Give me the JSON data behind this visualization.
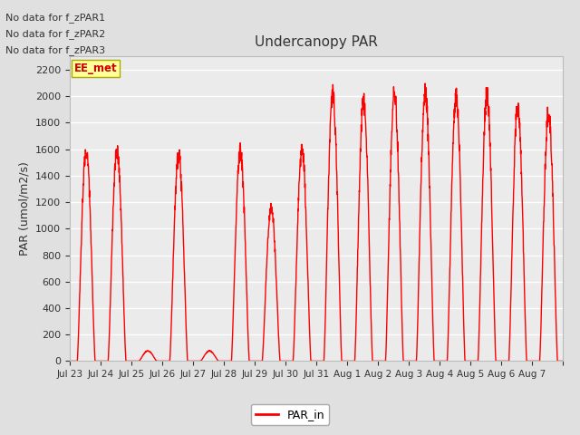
{
  "title": "Undercanopy PAR",
  "ylabel": "PAR (umol/m2/s)",
  "ylim": [
    0,
    2300
  ],
  "yticks": [
    0,
    200,
    400,
    600,
    800,
    1000,
    1200,
    1400,
    1600,
    1800,
    2000,
    2200
  ],
  "line_color": "#ff0000",
  "line_width": 1.0,
  "fig_bg_color": "#e0e0e0",
  "plot_bg_color": "#ebebeb",
  "no_data_texts": [
    "No data for f_zPAR1",
    "No data for f_zPAR2",
    "No data for f_zPAR3"
  ],
  "legend_label": "PAR_in",
  "legend_box_color": "#ffff99",
  "legend_box_text": "EE_met",
  "num_days": 16,
  "xlabels": [
    "Jul 23",
    "Jul 24",
    "Jul 25",
    "Jul 26",
    "Jul 27",
    "Jul 28",
    "Jul 29",
    "Jul 30",
    "Jul 31",
    "Aug 1",
    "Aug 2",
    "Aug 3",
    "Aug 4",
    "Aug 5",
    "Aug 6",
    "Aug 7"
  ],
  "day_peaks": [
    1650,
    1650,
    80,
    1620,
    80,
    1650,
    1200,
    1650,
    2100,
    2050,
    2100,
    2100,
    2080,
    2100,
    2000,
    1960
  ]
}
